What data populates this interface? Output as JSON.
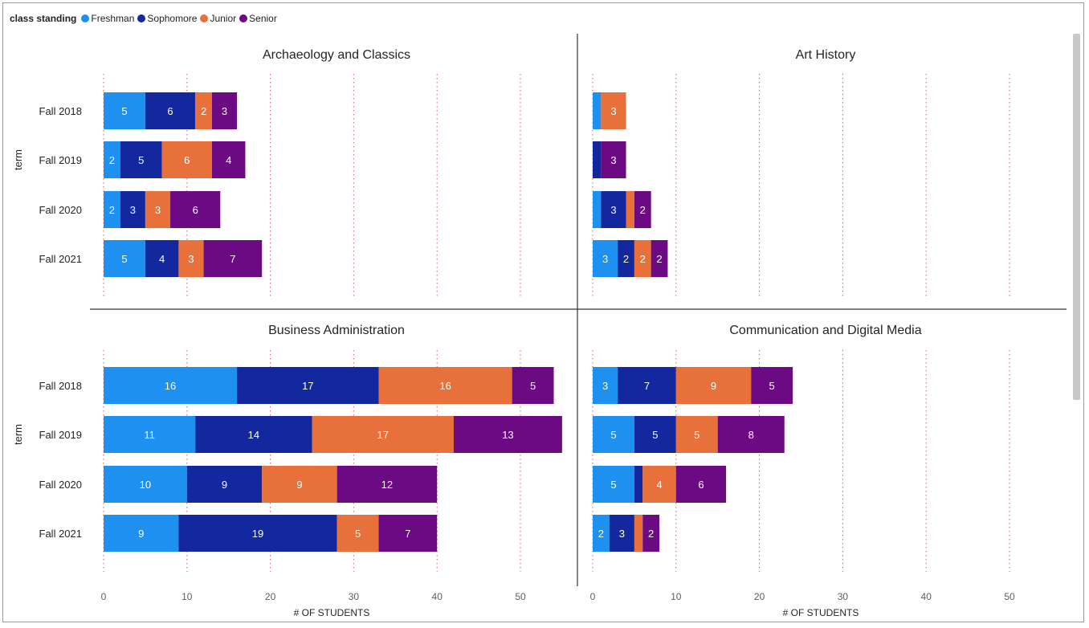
{
  "legend": {
    "title": "class standing",
    "items": [
      {
        "label": "Freshman",
        "color": "#1e90f0"
      },
      {
        "label": "Sophomore",
        "color": "#13279e"
      },
      {
        "label": "Junior",
        "color": "#e8703a"
      },
      {
        "label": "Senior",
        "color": "#6b0a82"
      }
    ]
  },
  "chart_data": {
    "type": "bar",
    "orientation": "horizontal",
    "stacked": true,
    "ylabel": "term",
    "xlabel": "# OF STUDENTS",
    "categories": [
      "Fall 2018",
      "Fall 2019",
      "Fall 2020",
      "Fall 2021"
    ],
    "xlim": [
      0,
      57
    ],
    "xticks": [
      0,
      10,
      20,
      30,
      40,
      50
    ],
    "grid": "vertical dotted",
    "legend_position": "top-left",
    "panels": [
      {
        "title": "Archaeology and Classics",
        "series": [
          {
            "name": "Freshman",
            "values": [
              5,
              2,
              2,
              5
            ]
          },
          {
            "name": "Sophomore",
            "values": [
              6,
              5,
              3,
              4
            ]
          },
          {
            "name": "Junior",
            "values": [
              2,
              6,
              3,
              3
            ]
          },
          {
            "name": "Senior",
            "values": [
              3,
              4,
              6,
              7
            ]
          }
        ]
      },
      {
        "title": "Art History",
        "series": [
          {
            "name": "Freshman",
            "values": [
              1,
              0,
              1,
              3
            ]
          },
          {
            "name": "Sophomore",
            "values": [
              0,
              1,
              3,
              2
            ]
          },
          {
            "name": "Junior",
            "values": [
              3,
              0,
              1,
              2
            ]
          },
          {
            "name": "Senior",
            "values": [
              0,
              3,
              2,
              2
            ]
          }
        ]
      },
      {
        "title": "Business Administration",
        "series": [
          {
            "name": "Freshman",
            "values": [
              16,
              11,
              10,
              9
            ]
          },
          {
            "name": "Sophomore",
            "values": [
              17,
              14,
              9,
              19
            ]
          },
          {
            "name": "Junior",
            "values": [
              16,
              17,
              9,
              5
            ]
          },
          {
            "name": "Senior",
            "values": [
              5,
              13,
              12,
              7
            ]
          }
        ]
      },
      {
        "title": "Communication and Digital Media",
        "series": [
          {
            "name": "Freshman",
            "values": [
              3,
              5,
              5,
              2
            ]
          },
          {
            "name": "Sophomore",
            "values": [
              7,
              5,
              1,
              3
            ]
          },
          {
            "name": "Junior",
            "values": [
              9,
              5,
              4,
              1
            ]
          },
          {
            "name": "Senior",
            "values": [
              5,
              8,
              6,
              2
            ]
          }
        ]
      }
    ]
  }
}
